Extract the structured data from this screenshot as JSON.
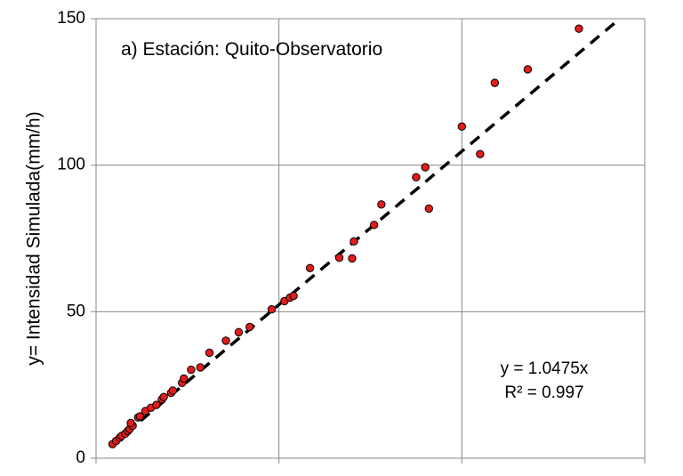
{
  "chart_data": {
    "type": "scatter",
    "title": "a) Estación: Quito-Observatorio",
    "xlabel": "",
    "ylabel": "y= Intensidad Simulada(mm/h)",
    "xlim": [
      0,
      150
    ],
    "ylim": [
      0,
      150
    ],
    "yticks": [
      "0",
      "50",
      "100",
      "150"
    ],
    "grid": true,
    "annotations": {
      "equation": "y = 1.0475x",
      "r2": "R² = 0.997"
    },
    "trendline": {
      "slope": 1.0475,
      "style": "dashed",
      "color": "#000000"
    },
    "marker_color": "#e31b1b",
    "points": [
      [
        4.5,
        4.8
      ],
      [
        5.5,
        5.9
      ],
      [
        6.5,
        7.0
      ],
      [
        7.0,
        7.6
      ],
      [
        8.0,
        8.4
      ],
      [
        8.7,
        9.3
      ],
      [
        9.2,
        10.0
      ],
      [
        10.0,
        11.1
      ],
      [
        9.5,
        12.0
      ],
      [
        11.5,
        13.9
      ],
      [
        12.0,
        14.3
      ],
      [
        13.5,
        16.1
      ],
      [
        15.0,
        17.2
      ],
      [
        16.5,
        18.2
      ],
      [
        18.0,
        20.1
      ],
      [
        18.5,
        20.9
      ],
      [
        20.5,
        22.3
      ],
      [
        21.0,
        23.1
      ],
      [
        23.5,
        25.7
      ],
      [
        24.0,
        27.2
      ],
      [
        26.0,
        30.2
      ],
      [
        28.5,
        31.0
      ],
      [
        31.0,
        36.0
      ],
      [
        35.5,
        40.1
      ],
      [
        39.0,
        43.0
      ],
      [
        42.0,
        44.8
      ],
      [
        48.0,
        50.8
      ],
      [
        51.5,
        53.6
      ],
      [
        53.0,
        54.8
      ],
      [
        54.0,
        55.4
      ],
      [
        58.5,
        64.9
      ],
      [
        66.5,
        68.4
      ],
      [
        70.0,
        68.2
      ],
      [
        70.5,
        74.0
      ],
      [
        76.0,
        79.6
      ],
      [
        78.0,
        86.6
      ],
      [
        87.5,
        95.9
      ],
      [
        90.0,
        99.3
      ],
      [
        91.0,
        85.2
      ],
      [
        100.0,
        113.2
      ],
      [
        105.0,
        103.8
      ],
      [
        109.0,
        128.1
      ],
      [
        118.0,
        132.7
      ],
      [
        132.0,
        146.6
      ]
    ]
  }
}
